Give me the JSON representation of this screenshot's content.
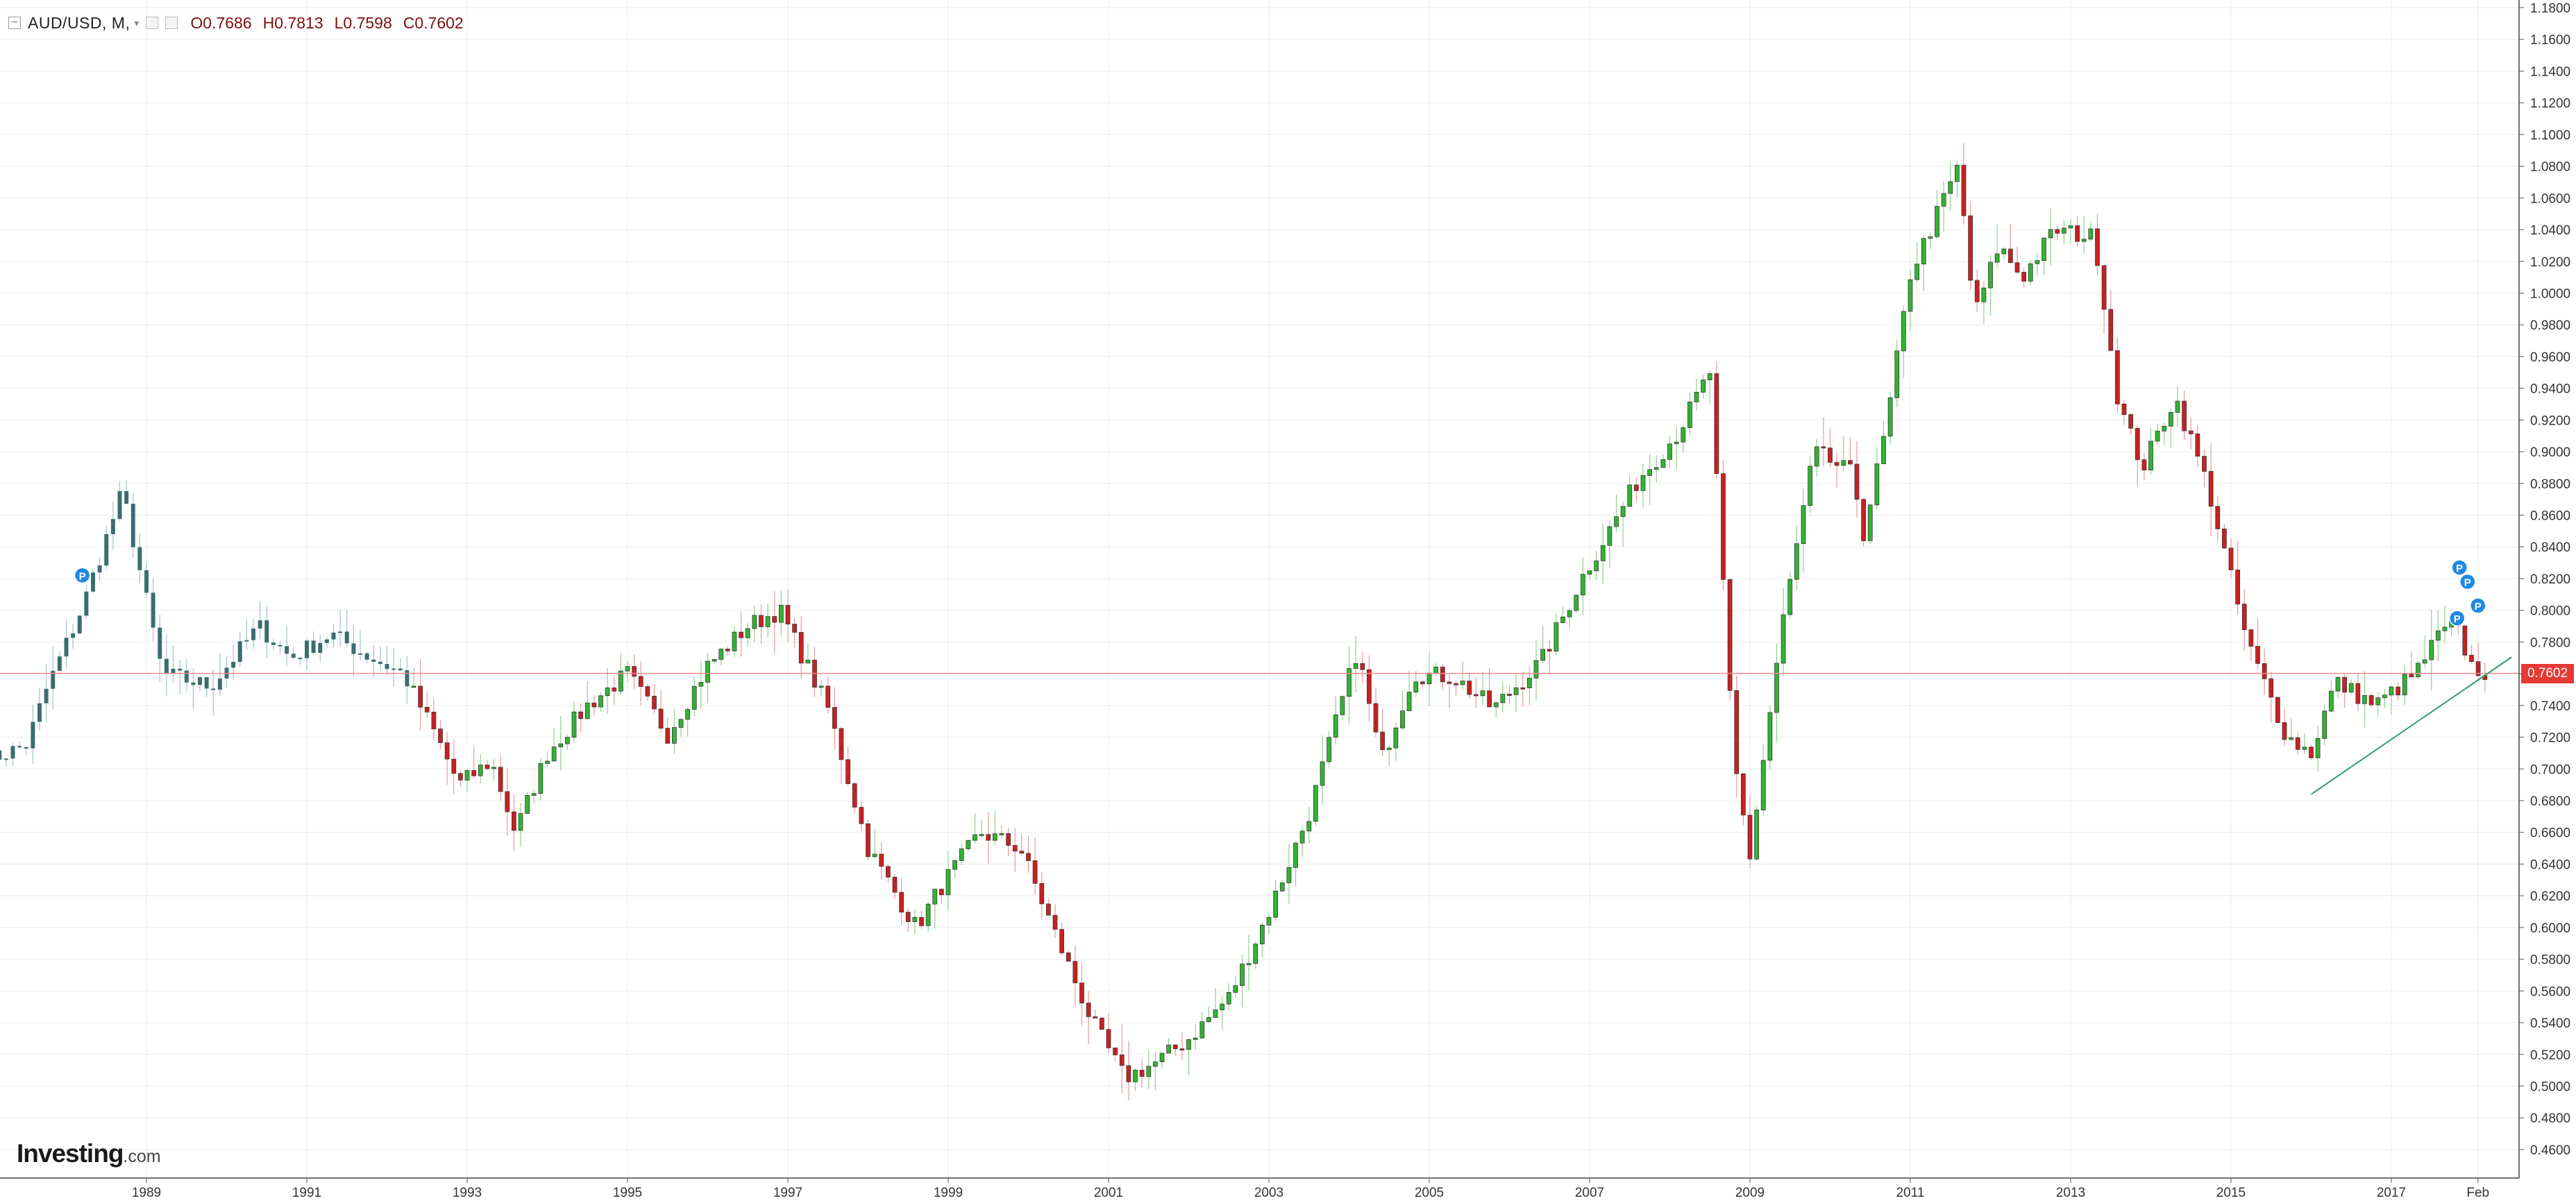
{
  "legend": {
    "symbol": "AUD/USD, M,",
    "open": "O0.7686",
    "high": "H0.7813",
    "low": "L0.7598",
    "close": "C0.7602"
  },
  "brand": {
    "name": "Investing",
    "suffix": ".com"
  },
  "last_price_label": "0.7602",
  "colors": {
    "up": "#2fb52f",
    "down": "#cc1f1f",
    "price_line": "#f28b8b",
    "trend_line": "#2e9e6e",
    "marker": "#1e88e5",
    "grid": "#ececec"
  },
  "chart_data": {
    "type": "candlestick",
    "title": "AUD/USD",
    "timeframe": "M",
    "ylim": [
      0.45,
      1.18
    ],
    "y_ticks": [
      "1.1800",
      "1.1600",
      "1.1400",
      "1.1200",
      "1.1000",
      "1.0800",
      "1.0600",
      "1.0400",
      "1.0200",
      "1.0000",
      "0.9800",
      "0.9600",
      "0.9400",
      "0.9200",
      "0.9000",
      "0.8800",
      "0.8600",
      "0.8400",
      "0.8200",
      "0.8000",
      "0.7800",
      "0.7600",
      "0.7400",
      "0.7200",
      "0.7000",
      "0.6800",
      "0.6600",
      "0.6400",
      "0.6200",
      "0.6000",
      "0.5800",
      "0.5600",
      "0.5400",
      "0.5200",
      "0.5000",
      "0.4800",
      "0.4600"
    ],
    "x_ticks": [
      "1989",
      "1991",
      "1993",
      "1995",
      "1997",
      "1999",
      "2001",
      "2003",
      "2005",
      "2007",
      "2009",
      "2011",
      "2013",
      "2015",
      "2017",
      "Feb"
    ],
    "last_price": 0.7602,
    "markers": [
      {
        "label": "P",
        "date": 1988.2,
        "price": 0.822
      },
      {
        "label": "P",
        "date": 2017.85,
        "price": 0.827
      },
      {
        "label": "P",
        "date": 2017.95,
        "price": 0.818
      },
      {
        "label": "P",
        "date": 2017.82,
        "price": 0.795
      },
      {
        "label": "P",
        "date": 2018.08,
        "price": 0.803
      }
    ],
    "trendline": [
      [
        2016.0,
        0.684
      ],
      [
        2018.5,
        0.7705
      ]
    ],
    "anchors": [
      [
        1987.0,
        0.705
      ],
      [
        1987.5,
        0.715
      ],
      [
        1987.75,
        0.75
      ],
      [
        1988.2,
        0.802
      ],
      [
        1988.7,
        0.875
      ],
      [
        1989.2,
        0.76
      ],
      [
        1989.8,
        0.752
      ],
      [
        1990.4,
        0.79
      ],
      [
        1990.8,
        0.77
      ],
      [
        1991.3,
        0.785
      ],
      [
        1991.8,
        0.77
      ],
      [
        1992.2,
        0.76
      ],
      [
        1992.6,
        0.722
      ],
      [
        1992.9,
        0.69
      ],
      [
        1993.3,
        0.705
      ],
      [
        1993.6,
        0.66
      ],
      [
        1994.0,
        0.71
      ],
      [
        1994.5,
        0.74
      ],
      [
        1995.0,
        0.76
      ],
      [
        1995.5,
        0.722
      ],
      [
        1996.0,
        0.765
      ],
      [
        1996.5,
        0.79
      ],
      [
        1996.9,
        0.8
      ],
      [
        1997.5,
        0.738
      ],
      [
        1998.0,
        0.65
      ],
      [
        1998.6,
        0.6
      ],
      [
        1998.9,
        0.625
      ],
      [
        1999.4,
        0.66
      ],
      [
        1999.9,
        0.65
      ],
      [
        2000.3,
        0.6
      ],
      [
        2000.8,
        0.54
      ],
      [
        2001.2,
        0.505
      ],
      [
        2001.6,
        0.515
      ],
      [
        2002.0,
        0.53
      ],
      [
        2002.5,
        0.556
      ],
      [
        2003.0,
        0.61
      ],
      [
        2003.5,
        0.672
      ],
      [
        2004.1,
        0.775
      ],
      [
        2004.4,
        0.705
      ],
      [
        2004.8,
        0.76
      ],
      [
        2005.3,
        0.758
      ],
      [
        2005.8,
        0.738
      ],
      [
        2006.4,
        0.768
      ],
      [
        2006.9,
        0.82
      ],
      [
        2007.6,
        0.882
      ],
      [
        2008.1,
        0.912
      ],
      [
        2008.5,
        0.95
      ],
      [
        2008.8,
        0.705
      ],
      [
        2009.0,
        0.645
      ],
      [
        2009.4,
        0.79
      ],
      [
        2009.8,
        0.9
      ],
      [
        2010.3,
        0.885
      ],
      [
        2010.4,
        0.845
      ],
      [
        2010.7,
        0.915
      ],
      [
        2011.0,
        1.012
      ],
      [
        2011.6,
        1.08
      ],
      [
        2011.8,
        0.985
      ],
      [
        2012.1,
        1.03
      ],
      [
        2012.4,
        1.01
      ],
      [
        2012.8,
        1.04
      ],
      [
        2013.3,
        1.035
      ],
      [
        2013.6,
        0.93
      ],
      [
        2013.9,
        0.89
      ],
      [
        2014.3,
        0.935
      ],
      [
        2014.7,
        0.88
      ],
      [
        2015.2,
        0.78
      ],
      [
        2015.7,
        0.72
      ],
      [
        2016.0,
        0.71
      ],
      [
        2016.3,
        0.755
      ],
      [
        2016.8,
        0.74
      ],
      [
        2017.3,
        0.76
      ],
      [
        2017.6,
        0.785
      ],
      [
        2017.8,
        0.79
      ],
      [
        2018.0,
        0.765
      ],
      [
        2018.2,
        0.76
      ]
    ]
  }
}
